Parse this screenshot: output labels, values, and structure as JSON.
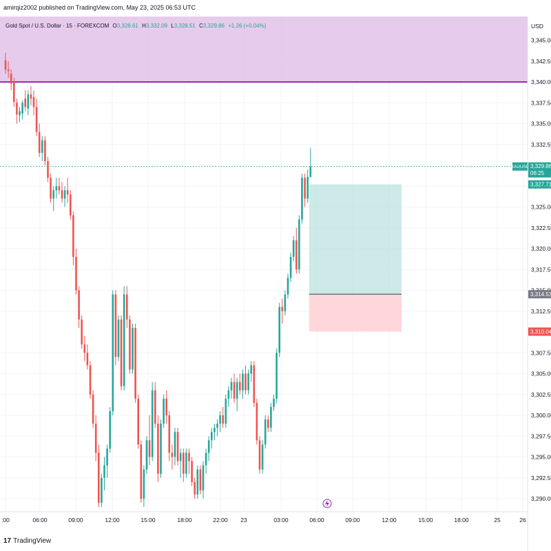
{
  "header": {
    "published": "amirqiz2002 published on TradingView.com, May 23, 2025 06:53 UTC"
  },
  "legend": {
    "symbol": "Gold Spot / U.S. Dollar · 15 · FOREXCOM",
    "o_label": "O",
    "o_value": "3,328.61",
    "h_label": "H",
    "h_value": "3,332.09",
    "l_label": "L",
    "l_value": "3,328.51",
    "c_label": "C",
    "c_value": "3,329.86",
    "change": "+1.26 (+0.04%)"
  },
  "footer": {
    "logo_text": "TradingView"
  },
  "colors": {
    "up": "#26a69a",
    "down": "#ef5350",
    "zone_fill": "#e1bee7",
    "zone_line": "#9c27b0",
    "profit_fill": "#b2dfdb",
    "loss_fill": "#ffcdd2",
    "grid": "#f0f3fa",
    "last_price": "#26a69a",
    "entry_label": "#787b86",
    "stop_label": "#ef5350"
  },
  "chart_data": {
    "type": "candlestick",
    "symbol": "XAUUSD",
    "currency": "USD",
    "ylim": [
      3287.5,
      3348.0
    ],
    "grid": true,
    "y_ticks": [
      "3,345.00",
      "3,342.50",
      "3,340.00",
      "3,337.50",
      "3,335.00",
      "3,332.50",
      "3,327.50",
      "3,325.00",
      "3,322.50",
      "3,320.00",
      "3,317.50",
      "3,315.00",
      "3,312.50",
      "3,307.50",
      "3,305.00",
      "3,302.50",
      "3,300.00",
      "3,297.50",
      "3,295.00",
      "3,292.50",
      "3,290.00"
    ],
    "x_ticks": [
      ":00",
      "06:00",
      "09:00",
      "12:00",
      "15:00",
      "18:00",
      "22:00",
      "23",
      "03:00",
      "06:00",
      "09:00",
      "12:00",
      "15:00",
      "18:00",
      "25",
      "26"
    ],
    "price_labels": {
      "symbol": "XAUUSD",
      "last": "3,329.86",
      "countdown": "06:25",
      "take_profit": "3,327.71",
      "entry": "3,314.53",
      "stop": "3,310.04"
    },
    "zone": {
      "from": 3340.0,
      "to": 3348.0
    },
    "position": {
      "type": "long",
      "entry": 3314.53,
      "take_profit": 3327.71,
      "stop": 3310.04
    },
    "candles": [
      [
        3342.6,
        3343.5,
        3341.0,
        3341.5
      ],
      [
        3341.5,
        3342.5,
        3340.5,
        3341.3
      ],
      [
        3341.0,
        3341.5,
        3339.0,
        3339.8
      ],
      [
        3340.0,
        3340.5,
        3337.0,
        3337.6
      ],
      [
        3337.5,
        3338.0,
        3335.0,
        3336.1
      ],
      [
        3336.0,
        3337.0,
        3335.2,
        3336.5
      ],
      [
        3336.2,
        3337.8,
        3335.5,
        3337.5
      ],
      [
        3338.0,
        3339.0,
        3336.5,
        3337.0
      ],
      [
        3336.8,
        3339.0,
        3336.0,
        3338.5
      ],
      [
        3338.5,
        3339.5,
        3337.2,
        3338.0
      ],
      [
        3338.2,
        3339.0,
        3336.0,
        3337.0
      ],
      [
        3337.0,
        3338.0,
        3333.5,
        3334.0
      ],
      [
        3334.0,
        3335.0,
        3331.0,
        3331.5
      ],
      [
        3331.5,
        3333.5,
        3330.5,
        3333.0
      ],
      [
        3333.0,
        3333.5,
        3330.0,
        3330.5
      ],
      [
        3330.5,
        3331.0,
        3328.0,
        3328.5
      ],
      [
        3328.5,
        3329.0,
        3325.5,
        3326.0
      ],
      [
        3326.0,
        3327.5,
        3324.5,
        3327.0
      ],
      [
        3327.0,
        3328.5,
        3326.0,
        3327.5
      ],
      [
        3327.5,
        3328.5,
        3326.5,
        3327.0
      ],
      [
        3327.0,
        3328.0,
        3325.5,
        3326.0
      ],
      [
        3326.0,
        3327.5,
        3325.0,
        3327.0
      ],
      [
        3327.0,
        3328.5,
        3325.5,
        3326.5
      ],
      [
        3326.5,
        3327.0,
        3323.5,
        3324.0
      ],
      [
        3324.0,
        3324.5,
        3318.0,
        3319.0
      ],
      [
        3319.0,
        3320.0,
        3314.5,
        3315.0
      ],
      [
        3315.0,
        3315.5,
        3310.5,
        3311.5
      ],
      [
        3311.5,
        3312.0,
        3308.0,
        3308.5
      ],
      [
        3308.5,
        3309.5,
        3306.5,
        3307.5
      ],
      [
        3307.5,
        3308.5,
        3305.5,
        3306.0
      ],
      [
        3306.0,
        3306.5,
        3302.0,
        3302.5
      ],
      [
        3302.5,
        3303.0,
        3298.5,
        3299.0
      ],
      [
        3299.0,
        3300.0,
        3294.5,
        3295.5
      ],
      [
        3295.5,
        3296.5,
        3289.0,
        3289.5
      ],
      [
        3289.5,
        3293.0,
        3289.0,
        3292.5
      ],
      [
        3292.5,
        3295.0,
        3291.0,
        3294.0
      ],
      [
        3294.0,
        3296.5,
        3292.5,
        3296.0
      ],
      [
        3296.0,
        3301.0,
        3295.5,
        3300.5
      ],
      [
        3300.5,
        3315.0,
        3300.0,
        3314.5
      ],
      [
        3314.5,
        3315.0,
        3306.0,
        3307.0
      ],
      [
        3307.0,
        3312.0,
        3306.5,
        3311.5
      ],
      [
        3311.5,
        3312.0,
        3303.0,
        3303.5
      ],
      [
        3303.5,
        3315.5,
        3303.0,
        3314.5
      ],
      [
        3314.5,
        3315.5,
        3310.5,
        3311.5
      ],
      [
        3311.5,
        3312.0,
        3305.0,
        3305.5
      ],
      [
        3305.5,
        3311.0,
        3305.0,
        3310.5
      ],
      [
        3310.5,
        3311.0,
        3301.5,
        3302.0
      ],
      [
        3302.0,
        3302.5,
        3296.0,
        3296.5
      ],
      [
        3296.5,
        3297.0,
        3289.5,
        3290.0
      ],
      [
        3290.0,
        3294.0,
        3289.0,
        3293.5
      ],
      [
        3293.5,
        3297.5,
        3293.0,
        3297.0
      ],
      [
        3297.0,
        3300.0,
        3294.0,
        3295.0
      ],
      [
        3295.0,
        3304.0,
        3294.5,
        3303.0
      ],
      [
        3303.0,
        3304.0,
        3298.5,
        3299.0
      ],
      [
        3299.0,
        3300.0,
        3292.0,
        3293.0
      ],
      [
        3293.0,
        3299.5,
        3292.5,
        3299.0
      ],
      [
        3299.0,
        3302.5,
        3298.5,
        3302.0
      ],
      [
        3302.0,
        3303.0,
        3299.0,
        3300.0
      ],
      [
        3300.0,
        3300.5,
        3294.5,
        3295.5
      ],
      [
        3295.5,
        3296.5,
        3293.5,
        3295.0
      ],
      [
        3295.0,
        3298.5,
        3294.0,
        3298.0
      ],
      [
        3298.0,
        3298.5,
        3294.0,
        3294.5
      ],
      [
        3294.5,
        3296.0,
        3292.5,
        3295.5
      ],
      [
        3295.5,
        3296.0,
        3292.0,
        3293.0
      ],
      [
        3293.0,
        3296.0,
        3292.5,
        3295.5
      ],
      [
        3295.5,
        3296.0,
        3293.0,
        3294.5
      ],
      [
        3294.5,
        3295.0,
        3291.5,
        3292.0
      ],
      [
        3292.0,
        3292.5,
        3290.0,
        3290.5
      ],
      [
        3290.5,
        3294.0,
        3290.0,
        3293.5
      ],
      [
        3293.5,
        3294.0,
        3290.5,
        3291.0
      ],
      [
        3291.0,
        3294.5,
        3290.0,
        3294.0
      ],
      [
        3294.0,
        3296.0,
        3293.0,
        3295.5
      ],
      [
        3295.5,
        3297.5,
        3294.5,
        3297.0
      ],
      [
        3297.0,
        3298.5,
        3296.0,
        3298.0
      ],
      [
        3298.0,
        3299.0,
        3297.0,
        3298.5
      ],
      [
        3298.5,
        3299.5,
        3297.5,
        3299.0
      ],
      [
        3299.0,
        3300.5,
        3298.0,
        3300.0
      ],
      [
        3300.0,
        3301.0,
        3298.5,
        3299.0
      ],
      [
        3299.0,
        3302.5,
        3298.5,
        3302.0
      ],
      [
        3302.0,
        3303.5,
        3301.0,
        3303.0
      ],
      [
        3303.0,
        3304.5,
        3302.0,
        3304.0
      ],
      [
        3304.0,
        3305.0,
        3301.5,
        3302.0
      ],
      [
        3302.0,
        3304.5,
        3300.5,
        3304.0
      ],
      [
        3304.0,
        3305.0,
        3302.5,
        3303.0
      ],
      [
        3303.0,
        3305.5,
        3302.0,
        3305.0
      ],
      [
        3305.0,
        3306.0,
        3302.5,
        3303.0
      ],
      [
        3303.0,
        3305.5,
        3302.5,
        3305.0
      ],
      [
        3305.0,
        3306.5,
        3304.0,
        3306.0
      ],
      [
        3306.0,
        3306.5,
        3301.0,
        3301.5
      ],
      [
        3301.5,
        3302.0,
        3296.5,
        3297.0
      ],
      [
        3297.0,
        3297.5,
        3293.0,
        3293.5
      ],
      [
        3293.5,
        3297.0,
        3293.0,
        3296.5
      ],
      [
        3296.5,
        3300.0,
        3296.0,
        3299.5
      ],
      [
        3299.5,
        3300.0,
        3298.0,
        3298.5
      ],
      [
        3298.5,
        3301.5,
        3298.0,
        3301.0
      ],
      [
        3301.0,
        3302.5,
        3300.5,
        3302.0
      ],
      [
        3302.0,
        3308.0,
        3301.5,
        3307.5
      ],
      [
        3307.5,
        3313.5,
        3307.0,
        3313.0
      ],
      [
        3313.0,
        3314.0,
        3311.0,
        3312.5
      ],
      [
        3312.5,
        3315.0,
        3312.0,
        3314.5
      ],
      [
        3314.5,
        3317.0,
        3314.0,
        3316.5
      ],
      [
        3316.5,
        3319.5,
        3316.0,
        3319.0
      ],
      [
        3319.0,
        3321.5,
        3318.5,
        3321.0
      ],
      [
        3321.0,
        3322.5,
        3317.0,
        3317.5
      ],
      [
        3317.5,
        3324.0,
        3317.0,
        3323.5
      ],
      [
        3323.5,
        3329.0,
        3323.0,
        3328.5
      ],
      [
        3328.5,
        3329.0,
        3325.0,
        3326.0
      ],
      [
        3326.0,
        3329.5,
        3325.5,
        3328.61
      ],
      [
        3328.61,
        3332.09,
        3328.51,
        3329.86
      ]
    ]
  }
}
